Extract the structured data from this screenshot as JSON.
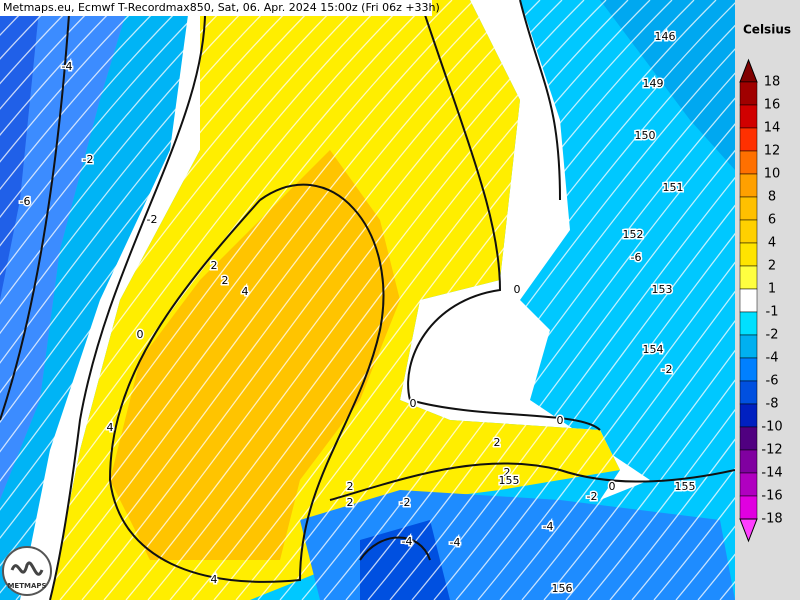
{
  "header": {
    "title": "Metmaps.eu, Ecmwf T-Recordmax850, Sat, 06. Apr. 2024 15:00z (Fri 06z +33h)"
  },
  "legend": {
    "unit": "Celsius",
    "labels": [
      "18",
      "16",
      "14",
      "12",
      "10",
      "8",
      "6",
      "4",
      "2",
      "1",
      "-1",
      "-2",
      "-4",
      "-6",
      "-8",
      "-10",
      "-12",
      "-14",
      "-16",
      "-18"
    ]
  },
  "map": {
    "temperature_labels": [
      "-4",
      "-2",
      "-6",
      "-2",
      "2",
      "2",
      "4",
      "0",
      "4",
      "0",
      "0",
      "0",
      "2",
      "2",
      "2",
      "2",
      "-2",
      "-2",
      "-2",
      "-6",
      "0",
      "-4",
      "-4",
      "-4",
      "4"
    ],
    "height_labels": [
      "146",
      "149",
      "150",
      "151",
      "152",
      "153",
      "154",
      "155",
      "155",
      "156"
    ]
  },
  "logo": "METMAPS"
}
